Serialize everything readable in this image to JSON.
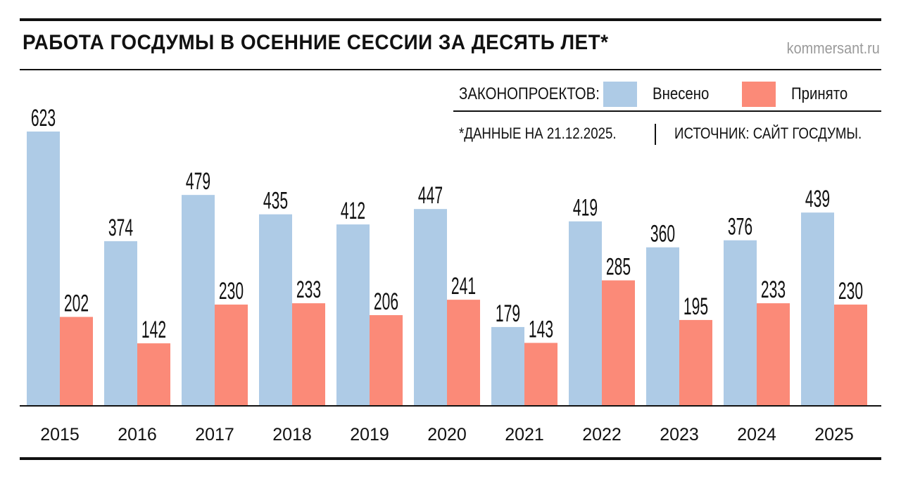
{
  "title": "РАБОТА ГОСДУМЫ В ОСЕННИЕ СЕССИИ ЗА ДЕСЯТЬ ЛЕТ*",
  "site": "kommersant.ru",
  "legend": {
    "label": "ЗАКОНОПРОЕКТОВ:",
    "series1": "Внесено",
    "series2": "Принято"
  },
  "note": {
    "date": "*ДАННЫЕ НА 21.12.2025.",
    "source": "ИСТОЧНИК: САЙТ ГОСДУМЫ."
  },
  "colors": {
    "introduced": "#aecbe6",
    "passed": "#fb8a78"
  },
  "chart_data": {
    "type": "bar",
    "title": "РАБОТА ГОСДУМЫ В ОСЕННИЕ СЕССИИ ЗА ДЕСЯТЬ ЛЕТ*",
    "categories": [
      "2015",
      "2016",
      "2017",
      "2018",
      "2019",
      "2020",
      "2021",
      "2022",
      "2023",
      "2024",
      "2025"
    ],
    "series": [
      {
        "name": "Внесено",
        "values": [
          623,
          374,
          479,
          435,
          412,
          447,
          179,
          419,
          360,
          376,
          439
        ]
      },
      {
        "name": "Принято",
        "values": [
          202,
          142,
          230,
          233,
          206,
          241,
          143,
          285,
          195,
          233,
          230
        ]
      }
    ],
    "ylim": [
      0,
      623
    ],
    "grid": false,
    "legend_position": "top-right"
  }
}
